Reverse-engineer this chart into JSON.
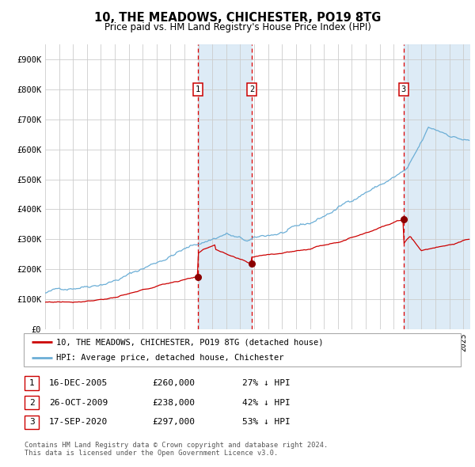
{
  "title": "10, THE MEADOWS, CHICHESTER, PO19 8TG",
  "subtitle": "Price paid vs. HM Land Registry's House Price Index (HPI)",
  "background_color": "#ffffff",
  "plot_bg_color": "#ffffff",
  "grid_color": "#cccccc",
  "hpi_line_color": "#6baed6",
  "price_line_color": "#cc0000",
  "sale_marker_color": "#8b0000",
  "shade_color": "#d8e8f5",
  "transactions": [
    {
      "label": "1",
      "date_num": 2005.96,
      "price": 260000,
      "pct": "27% ↓ HPI",
      "date_str": "16-DEC-2005"
    },
    {
      "label": "2",
      "date_num": 2009.82,
      "price": 238000,
      "pct": "42% ↓ HPI",
      "date_str": "26-OCT-2009"
    },
    {
      "label": "3",
      "date_num": 2020.71,
      "price": 297000,
      "pct": "53% ↓ HPI",
      "date_str": "17-SEP-2020"
    }
  ],
  "xmin": 1995.0,
  "xmax": 2025.5,
  "ymin": 0,
  "ymax": 950000,
  "yticks": [
    0,
    100000,
    200000,
    300000,
    400000,
    500000,
    600000,
    700000,
    800000,
    900000
  ],
  "ytick_labels": [
    "£0",
    "£100K",
    "£200K",
    "£300K",
    "£400K",
    "£500K",
    "£600K",
    "£700K",
    "£800K",
    "£900K"
  ],
  "legend_label_red": "10, THE MEADOWS, CHICHESTER, PO19 8TG (detached house)",
  "legend_label_blue": "HPI: Average price, detached house, Chichester",
  "footer": "Contains HM Land Registry data © Crown copyright and database right 2024.\nThis data is licensed under the Open Government Licence v3.0."
}
